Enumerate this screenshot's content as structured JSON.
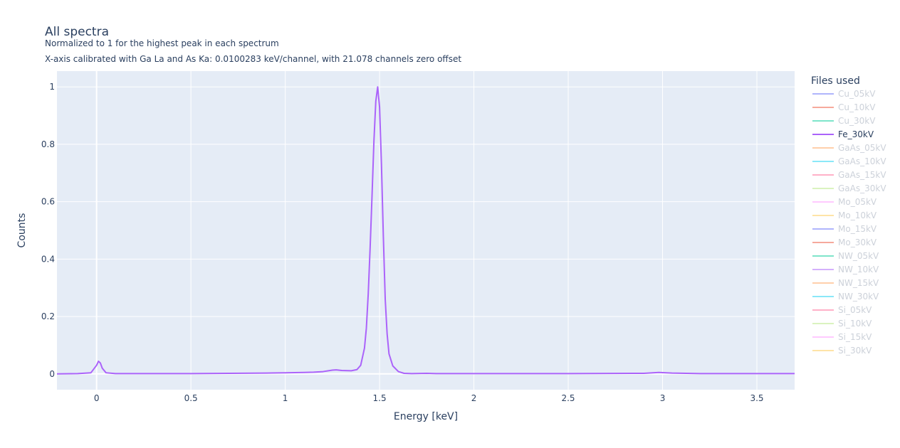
{
  "chart_data": {
    "type": "line",
    "title": "All spectra",
    "subtitle_lines": [
      "Normalized to 1 for the highest peak in each spectrum",
      "X-axis calibrated with Ga La and As Ka: 0.0100283 keV/channel, with 21.078 channels zero offset"
    ],
    "xlabel": "Energy [keV]",
    "ylabel": "Counts",
    "xlim": [
      -0.21,
      3.7
    ],
    "ylim": [
      -0.055,
      1.055
    ],
    "x_ticks": [
      0,
      0.5,
      1,
      1.5,
      2,
      2.5,
      3,
      3.5
    ],
    "x_tick_labels": [
      "0",
      "0.5",
      "1",
      "1.5",
      "2",
      "2.5",
      "3",
      "3.5"
    ],
    "y_ticks": [
      0,
      0.2,
      0.4,
      0.6,
      0.8,
      1
    ],
    "y_tick_labels": [
      "0",
      "0.2",
      "0.4",
      "0.6",
      "0.8",
      "1"
    ],
    "grid": true,
    "legend_title": "Files used",
    "legend_position": "right",
    "plot_background": "#e5ecf6",
    "series": [
      {
        "name": "Cu_05kV",
        "color": "#636efa",
        "visible": false
      },
      {
        "name": "Cu_10kV",
        "color": "#ef553b",
        "visible": false
      },
      {
        "name": "Cu_30kV",
        "color": "#00cc96",
        "visible": false
      },
      {
        "name": "Fe_30kV",
        "color": "#ab63fa",
        "visible": true,
        "x": [
          -0.21,
          -0.1,
          -0.03,
          0.0,
          0.01,
          0.02,
          0.03,
          0.05,
          0.1,
          0.3,
          0.5,
          0.7,
          0.9,
          1.0,
          1.1,
          1.15,
          1.2,
          1.25,
          1.27,
          1.3,
          1.35,
          1.38,
          1.4,
          1.42,
          1.43,
          1.44,
          1.45,
          1.46,
          1.47,
          1.48,
          1.49,
          1.5,
          1.51,
          1.52,
          1.53,
          1.54,
          1.55,
          1.57,
          1.6,
          1.63,
          1.67,
          1.75,
          1.8,
          2.0,
          2.5,
          2.9,
          2.98,
          3.05,
          3.2,
          3.7
        ],
        "y": [
          0.0,
          0.001,
          0.004,
          0.03,
          0.044,
          0.038,
          0.02,
          0.004,
          0.001,
          0.001,
          0.001,
          0.002,
          0.003,
          0.004,
          0.005,
          0.006,
          0.008,
          0.013,
          0.014,
          0.012,
          0.011,
          0.015,
          0.03,
          0.09,
          0.16,
          0.28,
          0.44,
          0.62,
          0.81,
          0.95,
          1.0,
          0.93,
          0.73,
          0.48,
          0.26,
          0.14,
          0.07,
          0.028,
          0.008,
          0.002,
          0.001,
          0.002,
          0.001,
          0.001,
          0.001,
          0.002,
          0.005,
          0.003,
          0.001,
          0.001
        ]
      },
      {
        "name": "GaAs_05kV",
        "color": "#ffa15a",
        "visible": false
      },
      {
        "name": "GaAs_10kV",
        "color": "#19d3f3",
        "visible": false
      },
      {
        "name": "GaAs_15kV",
        "color": "#ff6692",
        "visible": false
      },
      {
        "name": "GaAs_30kV",
        "color": "#b6e880",
        "visible": false
      },
      {
        "name": "Mo_05kV",
        "color": "#ff97ff",
        "visible": false
      },
      {
        "name": "Mo_10kV",
        "color": "#fecb52",
        "visible": false
      },
      {
        "name": "Mo_15kV",
        "color": "#636efa",
        "visible": false
      },
      {
        "name": "Mo_30kV",
        "color": "#ef553b",
        "visible": false
      },
      {
        "name": "NW_05kV",
        "color": "#00cc96",
        "visible": false
      },
      {
        "name": "NW_10kV",
        "color": "#ab63fa",
        "visible": false
      },
      {
        "name": "NW_15kV",
        "color": "#ffa15a",
        "visible": false
      },
      {
        "name": "NW_30kV",
        "color": "#19d3f3",
        "visible": false
      },
      {
        "name": "Si_05kV",
        "color": "#ff6692",
        "visible": false
      },
      {
        "name": "Si_10kV",
        "color": "#b6e880",
        "visible": false
      },
      {
        "name": "Si_15kV",
        "color": "#ff97ff",
        "visible": false
      },
      {
        "name": "Si_30kV",
        "color": "#fecb52",
        "visible": false
      }
    ]
  }
}
